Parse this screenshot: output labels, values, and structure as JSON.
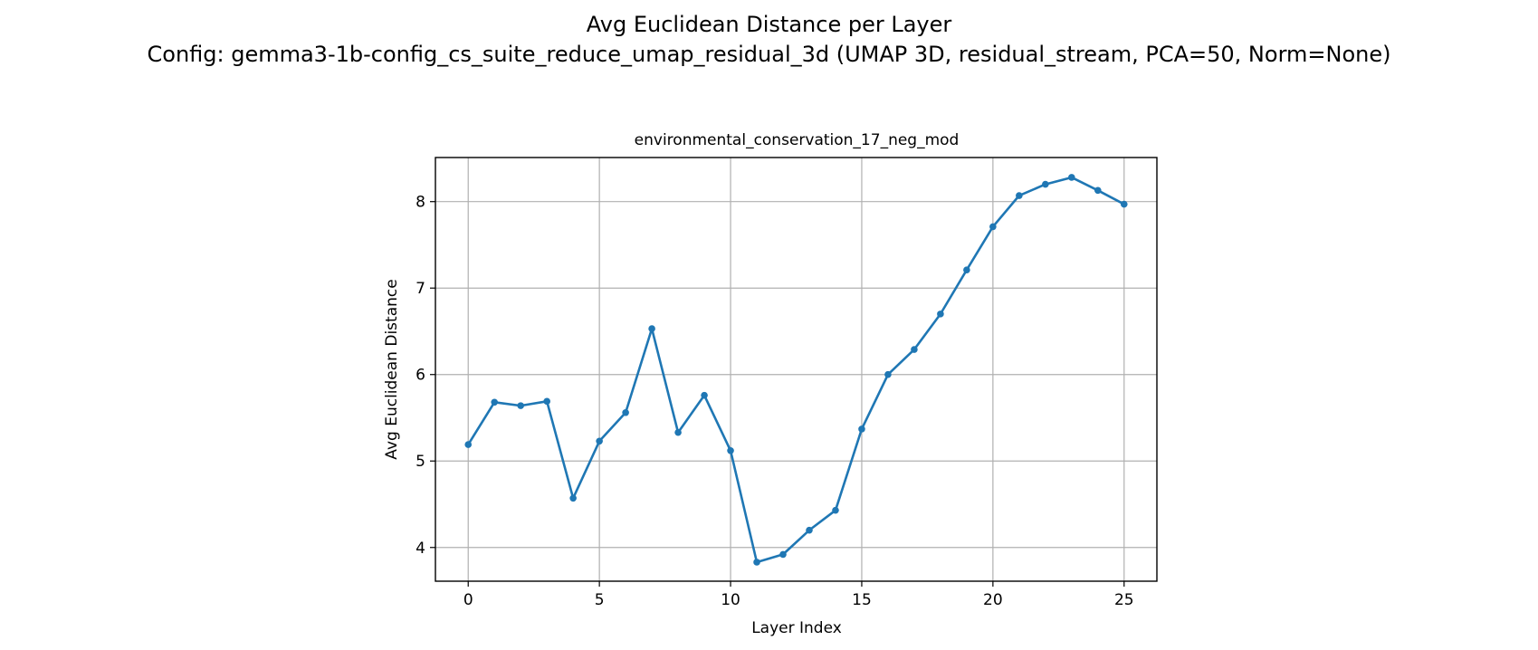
{
  "figure": {
    "title_line1": "Avg Euclidean Distance per Layer",
    "title_line2": "Config: gemma3-1b-config_cs_suite_reduce_umap_residual_3d (UMAP 3D, residual_stream, PCA=50, Norm=None)"
  },
  "chart_data": {
    "type": "line",
    "title": "environmental_conservation_17_neg_mod",
    "xlabel": "Layer Index",
    "ylabel": "Avg Euclidean Distance",
    "x": [
      0,
      1,
      2,
      3,
      4,
      5,
      6,
      7,
      8,
      9,
      10,
      11,
      12,
      13,
      14,
      15,
      16,
      17,
      18,
      19,
      20,
      21,
      22,
      23,
      24,
      25
    ],
    "series": [
      {
        "values": [
          5.19,
          5.68,
          5.64,
          5.69,
          4.57,
          5.23,
          5.56,
          6.53,
          5.33,
          5.76,
          5.12,
          3.83,
          3.92,
          4.2,
          4.43,
          5.37,
          6.0,
          6.29,
          6.7,
          7.21,
          7.71,
          8.07,
          8.2,
          8.28,
          8.13,
          7.97
        ],
        "color": "#1f77b4",
        "marker": "circle"
      }
    ],
    "xlim": [
      -1.25,
      26.25
    ],
    "ylim": [
      3.61,
      8.51
    ],
    "xticks": [
      0,
      5,
      10,
      15,
      20,
      25
    ],
    "yticks": [
      4,
      5,
      6,
      7,
      8
    ],
    "grid": true
  }
}
